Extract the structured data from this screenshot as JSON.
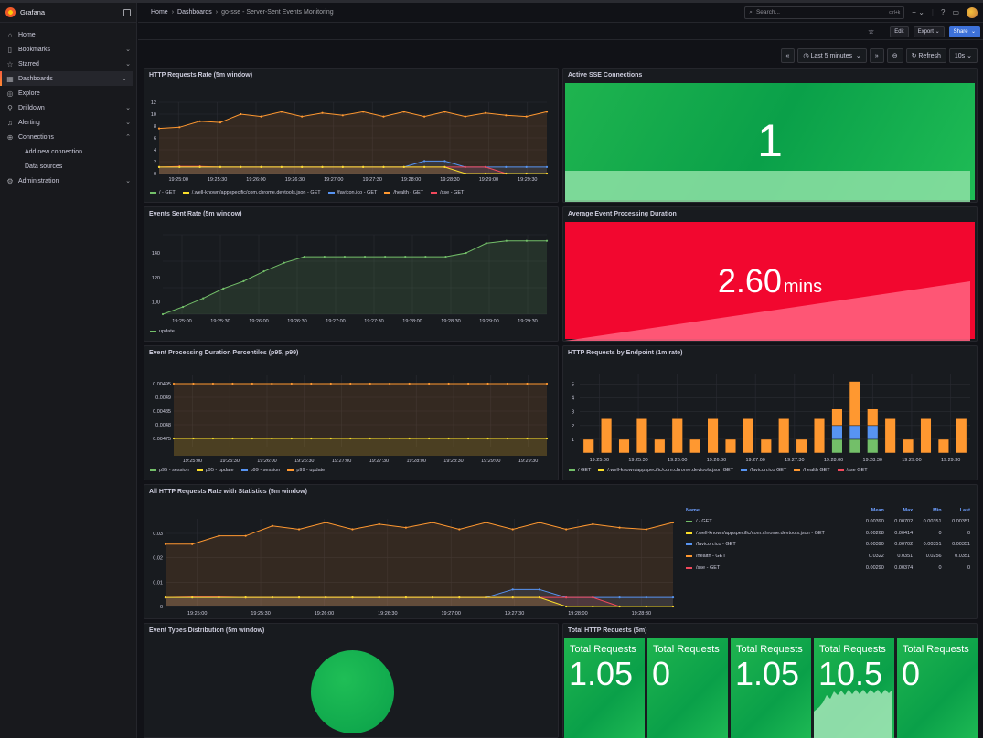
{
  "app": {
    "brand": "Grafana"
  },
  "sidebar": {
    "items": [
      {
        "label": "Home",
        "icon": "home-icon",
        "chev": ""
      },
      {
        "label": "Bookmarks",
        "icon": "bookmark-icon",
        "chev": "⌄"
      },
      {
        "label": "Starred",
        "icon": "star-icon",
        "chev": "⌄"
      },
      {
        "label": "Dashboards",
        "icon": "dashboards-icon",
        "chev": "⌄"
      },
      {
        "label": "Explore",
        "icon": "explore-icon",
        "chev": ""
      },
      {
        "label": "Drilldown",
        "icon": "drilldown-icon",
        "chev": "⌄"
      },
      {
        "label": "Alerting",
        "icon": "bell-icon",
        "chev": "⌄"
      },
      {
        "label": "Connections",
        "icon": "connections-icon",
        "chev": "⌃"
      }
    ],
    "sub_items": [
      "Add new connection",
      "Data sources"
    ],
    "admin": {
      "label": "Administration",
      "chev": "⌄"
    }
  },
  "header": {
    "breadcrumb": [
      "Home",
      "Dashboards",
      "go-sse - Server-Sent Events Monitoring"
    ],
    "search_placeholder": "Search...",
    "search_shortcut": "ctrl+k"
  },
  "toolbar": {
    "edit": "Edit",
    "export": "Export",
    "share": "Share"
  },
  "controls": {
    "time_range": "Last 5 minutes",
    "refresh": "Refresh",
    "interval": "10s"
  },
  "panels": {
    "http_rate": {
      "title": "HTTP Requests Rate (5m window)",
      "yticks": [
        "12",
        "10",
        "8",
        "6",
        "4",
        "2",
        "0"
      ],
      "xticks": [
        "19:25:00",
        "19:25:30",
        "19:26:00",
        "19:26:30",
        "19:27:00",
        "19:27:30",
        "19:28:00",
        "19:28:30",
        "19:29:00",
        "19:29:30"
      ],
      "legend": [
        {
          "label": "/ - GET",
          "color": "#73bf69"
        },
        {
          "label": "/.well-known/appspecific/com.chrome.devtools.json - GET",
          "color": "#fade2a"
        },
        {
          "label": "/favicon.ico - GET",
          "color": "#5794f2"
        },
        {
          "label": "/health - GET",
          "color": "#ff9830"
        },
        {
          "label": "/sse - GET",
          "color": "#f2495c"
        }
      ]
    },
    "active_sse": {
      "title": "Active SSE Connections",
      "value": "1"
    },
    "events_sent": {
      "title": "Events Sent Rate (5m window)",
      "yticks": [
        "140",
        "120",
        "100"
      ],
      "xticks": [
        "19:25:00",
        "19:25:30",
        "19:26:00",
        "19:26:30",
        "19:27:00",
        "19:27:30",
        "19:28:00",
        "19:28:30",
        "19:29:00",
        "19:29:30"
      ],
      "legend": [
        {
          "label": "update",
          "color": "#73bf69"
        }
      ]
    },
    "avg_duration": {
      "title": "Average Event Processing Duration",
      "value": "2.60",
      "unit": "mins"
    },
    "percentiles": {
      "title": "Event Processing Duration Percentiles (p95, p99)",
      "yticks": [
        "0.00495",
        "0.0049",
        "0.00485",
        "0.0048",
        "0.00475"
      ],
      "xticks": [
        "19:25:00",
        "19:25:30",
        "19:26:00",
        "19:26:30",
        "19:27:00",
        "19:27:30",
        "19:28:00",
        "19:28:30",
        "19:29:00",
        "19:29:30"
      ],
      "legend": [
        {
          "label": "p95 - session",
          "color": "#73bf69"
        },
        {
          "label": "p95 - update",
          "color": "#fade2a"
        },
        {
          "label": "p99 - session",
          "color": "#5794f2"
        },
        {
          "label": "p99 - update",
          "color": "#ff9830"
        }
      ]
    },
    "by_endpoint": {
      "title": "HTTP Requests by Endpoint (1m rate)",
      "yticks": [
        "5",
        "4",
        "3",
        "2",
        "1"
      ],
      "xticks": [
        "19:25:00",
        "19:25:30",
        "19:26:00",
        "19:26:30",
        "19:27:00",
        "19:27:30",
        "19:28:00",
        "19:28:30",
        "19:29:00",
        "19:29:30"
      ],
      "legend": [
        {
          "label": "/ GET",
          "color": "#73bf69"
        },
        {
          "label": "/.well-known/appspecific/com.chrome.devtools.json GET",
          "color": "#fade2a"
        },
        {
          "label": "/favicon.ico GET",
          "color": "#5794f2"
        },
        {
          "label": "/health GET",
          "color": "#ff9830"
        },
        {
          "label": "/sse GET",
          "color": "#f2495c"
        }
      ]
    },
    "all_http": {
      "title": "All HTTP Requests Rate with Statistics (5m window)",
      "yticks": [
        "0.03",
        "0.02",
        "0.01",
        "0"
      ],
      "xticks": [
        "19:25:00",
        "19:25:30",
        "19:26:00",
        "19:26:30",
        "19:27:00",
        "19:27:30",
        "19:28:00",
        "19:28:30"
      ],
      "table": {
        "headers": [
          "Name",
          "Mean",
          "Max",
          "Min",
          "Last"
        ],
        "rows": [
          {
            "name": "/ - GET",
            "color": "#73bf69",
            "mean": "0.00390",
            "max": "0.00702",
            "min": "0.00351",
            "last": "0.00351"
          },
          {
            "name": "/.well-known/appspecific/com.chrome.devtools.json - GET",
            "color": "#fade2a",
            "mean": "0.00268",
            "max": "0.00414",
            "min": "0",
            "last": "0"
          },
          {
            "name": "/favicon.ico - GET",
            "color": "#5794f2",
            "mean": "0.00390",
            "max": "0.00702",
            "min": "0.00351",
            "last": "0.00351"
          },
          {
            "name": "/health - GET",
            "color": "#ff9830",
            "mean": "0.0322",
            "max": "0.0351",
            "min": "0.0256",
            "last": "0.0351"
          },
          {
            "name": "/sse - GET",
            "color": "#f2495c",
            "mean": "0.00290",
            "max": "0.00374",
            "min": "0",
            "last": "0"
          }
        ]
      }
    },
    "event_types": {
      "title": "Event Types Distribution (5m window)"
    },
    "total_http": {
      "title": "Total HTTP Requests (5m)",
      "stats": [
        {
          "label": "Total Requests",
          "value": "1.05"
        },
        {
          "label": "Total Requests",
          "value": "0"
        },
        {
          "label": "Total Requests",
          "value": "1.05"
        },
        {
          "label": "Total Requests",
          "value": "10.5"
        },
        {
          "label": "Total Requests",
          "value": "0"
        }
      ]
    }
  },
  "chart_data": [
    {
      "type": "line",
      "title": "HTTP Requests Rate (5m window)",
      "ylim": [
        0,
        12
      ],
      "x": [
        0,
        1,
        2,
        3,
        4,
        5,
        6,
        7,
        8,
        9,
        10,
        11,
        12,
        13,
        14,
        15,
        16,
        17,
        18,
        19
      ],
      "series": [
        {
          "name": "/health - GET",
          "values": [
            7.6,
            7.8,
            8.8,
            8.6,
            10.0,
            9.6,
            10.4,
            9.6,
            10.2,
            9.8,
            10.4,
            9.6,
            10.4,
            9.6,
            10.4,
            9.6,
            10.2,
            9.8,
            9.6,
            10.4
          ]
        },
        {
          "name": "/favicon.ico - GET",
          "values": [
            1.1,
            1.1,
            1.1,
            1.1,
            1.1,
            1.1,
            1.1,
            1.1,
            1.1,
            1.1,
            1.1,
            1.1,
            1.1,
            2.1,
            2.1,
            1.1,
            1.1,
            1.1,
            1.1,
            1.1
          ]
        },
        {
          "name": "/sse - GET",
          "values": [
            1.1,
            1.2,
            1.2,
            1.1,
            1.1,
            1.1,
            1.1,
            1.1,
            1.1,
            1.1,
            1.1,
            1.1,
            1.1,
            1.1,
            1.1,
            1.1,
            1.1,
            0,
            0,
            0
          ]
        },
        {
          "name": "/.well-known/appspecific/com.chrome.devtools.json - GET",
          "values": [
            1.1,
            1.1,
            1.1,
            1.1,
            1.1,
            1.1,
            1.1,
            1.1,
            1.1,
            1.1,
            1.1,
            1.1,
            1.1,
            1.1,
            1.1,
            0,
            0,
            0,
            0,
            0
          ]
        }
      ]
    },
    {
      "type": "line",
      "title": "Events Sent Rate (5m window)",
      "ylim": [
        90,
        155
      ],
      "x": [
        0,
        1,
        2,
        3,
        4,
        5,
        6,
        7,
        8,
        9,
        10,
        11,
        12,
        13,
        14,
        15,
        16,
        17,
        18,
        19
      ],
      "series": [
        {
          "name": "update",
          "values": [
            90,
            96,
            103,
            111,
            117,
            125,
            132,
            137,
            137,
            137,
            137,
            137,
            137,
            137,
            137,
            140,
            148,
            150,
            150,
            150
          ]
        }
      ]
    },
    {
      "type": "line",
      "title": "Event Processing Duration Percentiles (p95, p99)",
      "ylim": [
        0.00472,
        0.00498
      ],
      "series": [
        {
          "name": "p99 - update",
          "values": [
            0.00495,
            0.00495,
            0.00495,
            0.00495,
            0.00495,
            0.00495,
            0.00495,
            0.00495,
            0.00495,
            0.00495,
            0.00495,
            0.00495,
            0.00495,
            0.00495,
            0.00495,
            0.00495,
            0.00495,
            0.00495,
            0.00495,
            0.00495
          ]
        },
        {
          "name": "p95 - update",
          "values": [
            0.00475,
            0.00475,
            0.00475,
            0.00475,
            0.00475,
            0.00475,
            0.00475,
            0.00475,
            0.00475,
            0.00475,
            0.00475,
            0.00475,
            0.00475,
            0.00475,
            0.00475,
            0.00475,
            0.00475,
            0.00475,
            0.00475,
            0.00475
          ]
        }
      ]
    },
    {
      "type": "bar",
      "title": "HTTP Requests by Endpoint (1m rate)",
      "ylim": [
        0,
        5.7
      ],
      "series": [
        {
          "name": "/ GET",
          "values": [
            0,
            0,
            0,
            0,
            0,
            0,
            0,
            0,
            0,
            0,
            0,
            0,
            0,
            0,
            1,
            1,
            1,
            0,
            0,
            0,
            0,
            0
          ]
        },
        {
          "name": "/favicon.ico GET",
          "values": [
            0,
            0,
            0,
            0,
            0,
            0,
            0,
            0,
            0,
            0,
            0,
            0,
            0,
            0,
            1,
            1,
            1,
            0,
            0,
            0,
            0,
            0
          ]
        },
        {
          "name": "/health GET",
          "values": [
            1,
            2.5,
            1,
            2.5,
            1,
            2.5,
            1,
            2.5,
            1,
            2.5,
            1,
            2.5,
            1,
            2.5,
            1.2,
            3.2,
            1.2,
            2.5,
            1,
            2.5,
            1,
            2.5
          ]
        }
      ]
    },
    {
      "type": "line",
      "title": "All HTTP Requests Rate with Statistics (5m window)",
      "ylim": [
        0,
        0.036
      ],
      "series": [
        {
          "name": "/health - GET",
          "values": [
            0.0256,
            0.0256,
            0.029,
            0.029,
            0.0331,
            0.0317,
            0.0345,
            0.0317,
            0.0338,
            0.0324,
            0.0345,
            0.0317,
            0.0345,
            0.0317,
            0.0345,
            0.0317,
            0.0338,
            0.0324,
            0.0317,
            0.0345
          ]
        },
        {
          "name": "/favicon.ico - GET",
          "values": [
            0.0037,
            0.0037,
            0.0037,
            0.0037,
            0.0037,
            0.0037,
            0.0037,
            0.0037,
            0.0037,
            0.0037,
            0.0037,
            0.0037,
            0.0037,
            0.007,
            0.007,
            0.0037,
            0.0037,
            0.0037,
            0.0037,
            0.0037
          ]
        },
        {
          "name": "/sse - GET",
          "values": [
            0.0037,
            0.0039,
            0.0039,
            0.0037,
            0.0037,
            0.0037,
            0.0037,
            0.0037,
            0.0037,
            0.0037,
            0.0037,
            0.0037,
            0.0037,
            0.0037,
            0.0037,
            0.0037,
            0.0037,
            0,
            0,
            0
          ]
        },
        {
          "name": "/.well-known/appspecific/com.chrome.devtools.json - GET",
          "values": [
            0.0037,
            0.0037,
            0.0037,
            0.0037,
            0.0037,
            0.0037,
            0.0037,
            0.0037,
            0.0037,
            0.0037,
            0.0037,
            0.0037,
            0.0037,
            0.0037,
            0.0037,
            0,
            0,
            0,
            0,
            0
          ]
        }
      ]
    }
  ]
}
